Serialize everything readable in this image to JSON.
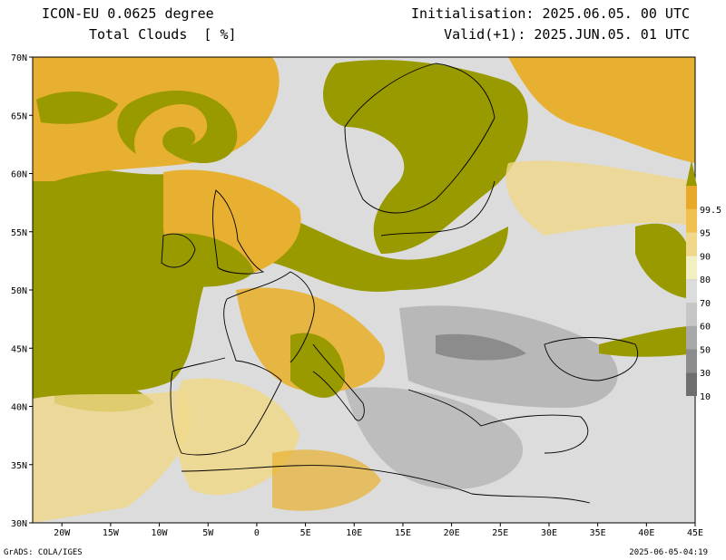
{
  "header": {
    "model": "ICON-EU 0.0625 degree",
    "variable": "Total Clouds  [ %]",
    "init": "Initialisation: 2025.06.05. 00 UTC",
    "valid": "Valid(+1): 2025.JUN.05. 01 UTC"
  },
  "footer": {
    "software": "GrADS: COLA/IGES",
    "timestamp": "2025-06-05-04:19"
  },
  "map": {
    "lon_range": [
      -23,
      45
    ],
    "lat_range": [
      30,
      70
    ],
    "lat_ticks": [
      {
        "value": 70,
        "label": "70N"
      },
      {
        "value": 65,
        "label": "65N"
      },
      {
        "value": 60,
        "label": "60N"
      },
      {
        "value": 55,
        "label": "55N"
      },
      {
        "value": 50,
        "label": "50N"
      },
      {
        "value": 45,
        "label": "45N"
      },
      {
        "value": 40,
        "label": "40N"
      },
      {
        "value": 35,
        "label": "35N"
      },
      {
        "value": 30,
        "label": "30N"
      }
    ],
    "lon_ticks": [
      {
        "value": -20,
        "label": "20W"
      },
      {
        "value": -15,
        "label": "15W"
      },
      {
        "value": -10,
        "label": "10W"
      },
      {
        "value": -5,
        "label": "5W"
      },
      {
        "value": 0,
        "label": "0"
      },
      {
        "value": 5,
        "label": "5E"
      },
      {
        "value": 10,
        "label": "10E"
      },
      {
        "value": 15,
        "label": "15E"
      },
      {
        "value": 20,
        "label": "20E"
      },
      {
        "value": 25,
        "label": "25E"
      },
      {
        "value": 30,
        "label": "30E"
      },
      {
        "value": 35,
        "label": "35E"
      },
      {
        "value": 40,
        "label": "40E"
      },
      {
        "value": 45,
        "label": "45E"
      }
    ]
  },
  "colorbar": {
    "levels": [
      "10",
      "30",
      "50",
      "60",
      "70",
      "80",
      "90",
      "95",
      "99.5"
    ],
    "colors": [
      "#6e6e6e",
      "#8c8c8c",
      "#a8a8a8",
      "#c6c6c6",
      "#dcdcdc",
      "#f2f0c2",
      "#f0d88a",
      "#f0c050",
      "#e8a82a",
      "#999900"
    ]
  },
  "palette": {
    "background_land": "#dcdcdc",
    "overcast": "#999900",
    "high": "#e8b030",
    "mid": "#f0d88a",
    "gray": "#a8a8a8",
    "dark": "#6e6e6e"
  }
}
